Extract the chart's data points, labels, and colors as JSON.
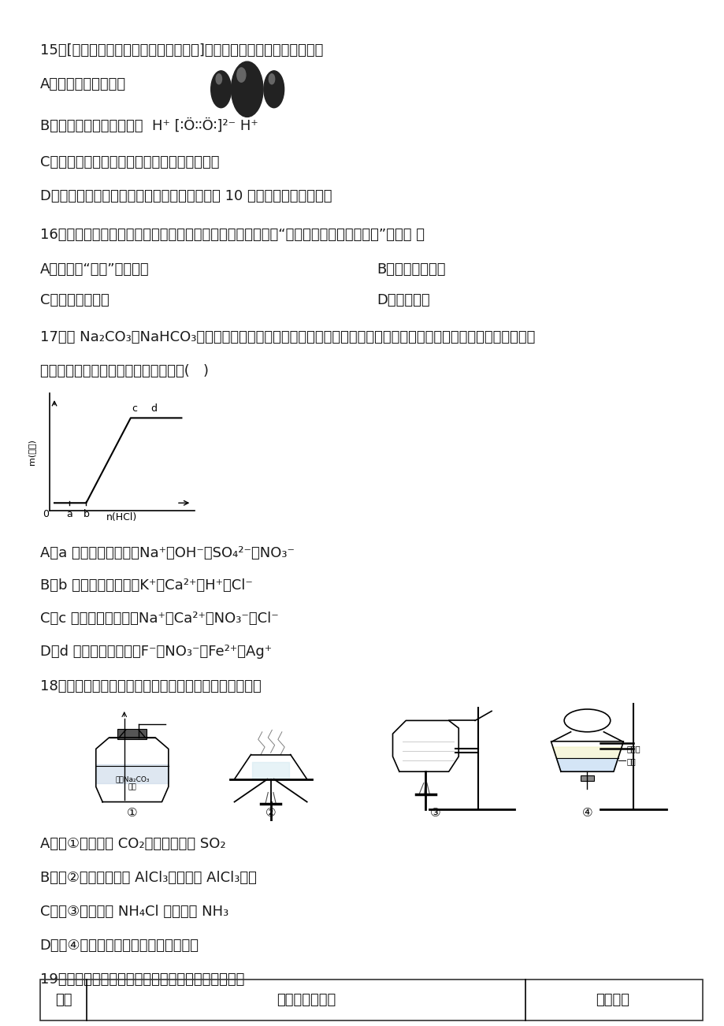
{
  "bg_color": "#ffffff",
  "lm": 0.055,
  "rm": 0.97,
  "q15": "15、[安徽省蚌埠市高三第一次质量监测]下列有关化学用语表示正确的是",
  "q15_A": "A．水分子的比例模型",
  "q15_B": "B．过氧化氢的电子式为：",
  "q15_C": "C．石油的分馏和煤的气化、液化均为物理变化",
  "q15_D": "D．甲基环丁烷二氯代物的同分异构体的数目是 10 种（不考虑立体异构）",
  "q16": "16、以下措施都能使海洋钙质钒台增强抗腐蚀能力，其中属于“犊犊牧阳极的阴极保护法”的是（ ）",
  "q16_A": "A．对钙材“发蓝”（镣化）",
  "q16_B": "B．选用钓铁合金",
  "q16_C": "C．外接电源负极",
  "q16_D": "D．连接锌块",
  "q17": "17、向 Na₂CO₃、NaHCO₃混合溶液中逐滴加入稀盐酸，生成气体的量随盐酸加入量的变化关系如图所示，则下列离子",
  "q17_cont": "组在对应的溶液中一定能大量共存的是(   )",
  "q17_A": "A．a 点对应的溶液中：Na⁺、OH⁻、SO₄²⁻、NO₃⁻",
  "q17_B": "B．b 点对应的溶液中：K⁺、Ca²⁺、H⁺、Cl⁻",
  "q17_C": "C．c 点对应的溶液中：Na⁺、Ca²⁺、NO₃⁻、Cl⁻",
  "q17_D": "D．d 点对应的溶液中：F⁻、NO₃⁻、Fe²⁺、Ag⁺",
  "q18": "18、用下列实验装置进行相应实验，能达到实验目的的是",
  "q18_A": "A．用①装置除去 CO₂中含有的少量 SO₂",
  "q18_B": "B．用②装置蒸干饱和 AlCl₃溶液制备 AlCl₃晶体",
  "q18_C": "C．用③装置加热 NH₄Cl 固体制取 NH₃",
  "q18_D": "D．用④装置分离乙酸乙酯与水的混合液",
  "q19": "19、根据下列实验操作和现象所得到的结论正确的是",
  "table_col1": "选项",
  "table_col2": "实验操作和现象",
  "table_col3": "实验结论"
}
